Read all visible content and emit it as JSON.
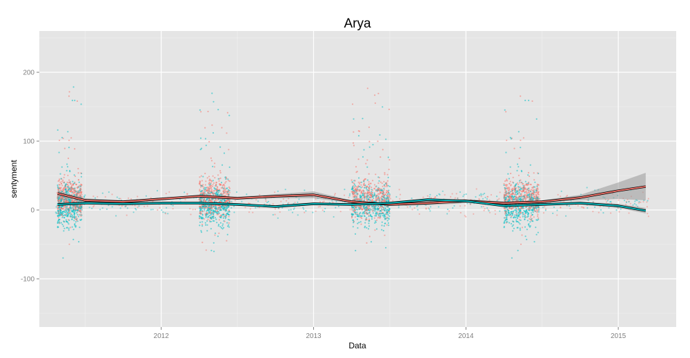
{
  "chart_data": {
    "type": "scatter",
    "title": "Arya",
    "xlabel": "Data",
    "ylabel": "sentyment",
    "x_ticks": [
      "2012",
      "2013",
      "2014",
      "2015"
    ],
    "y_ticks": [
      "-100",
      "0",
      "100",
      "200"
    ],
    "xlim": [
      2011.2,
      2015.38
    ],
    "ylim": [
      -170,
      260
    ],
    "grid": true,
    "legend": "none",
    "colors": {
      "panel_bg": "#e5e5e5",
      "grid_major": "#ffffff",
      "grid_minor": "#f2f2f2",
      "series_red": "#f8766d",
      "series_teal": "#00bfc4",
      "ribbon": "#999999",
      "smooth_outline": "#000000"
    },
    "point_clusters": [
      {
        "x_start": 2011.32,
        "x_end": 2011.48
      },
      {
        "x_start": 2012.25,
        "x_end": 2012.45
      },
      {
        "x_start": 2013.25,
        "x_end": 2013.5
      },
      {
        "x_start": 2014.25,
        "x_end": 2014.48
      }
    ],
    "series": [
      {
        "x": [
          2011.32,
          2011.5,
          2011.75,
          2012.0,
          2012.25,
          2012.5,
          2012.75,
          2013.0,
          2013.25,
          2013.5,
          2013.75,
          2014.0,
          2014.25,
          2014.5,
          2014.75,
          2015.0,
          2015.18
        ],
        "y": [
          24,
          14,
          12,
          16,
          20,
          17,
          20,
          22,
          12,
          8,
          10,
          13,
          10,
          12,
          18,
          28,
          34
        ],
        "band": [
          4,
          3,
          2,
          2,
          2,
          2,
          3,
          5,
          2,
          2,
          3,
          3,
          2,
          2,
          4,
          12,
          20
        ]
      },
      {
        "x": [
          2011.32,
          2011.5,
          2011.75,
          2012.0,
          2012.25,
          2012.5,
          2012.75,
          2013.0,
          2013.25,
          2013.5,
          2013.75,
          2014.0,
          2014.25,
          2014.5,
          2014.75,
          2015.0,
          2015.18
        ],
        "y": [
          8,
          10,
          9,
          10,
          10,
          8,
          5,
          9,
          8,
          10,
          15,
          13,
          6,
          8,
          10,
          6,
          -1
        ],
        "band": [
          2,
          2,
          2,
          2,
          1,
          1,
          2,
          2,
          1,
          1,
          2,
          2,
          1,
          1,
          2,
          3,
          4
        ]
      }
    ]
  }
}
